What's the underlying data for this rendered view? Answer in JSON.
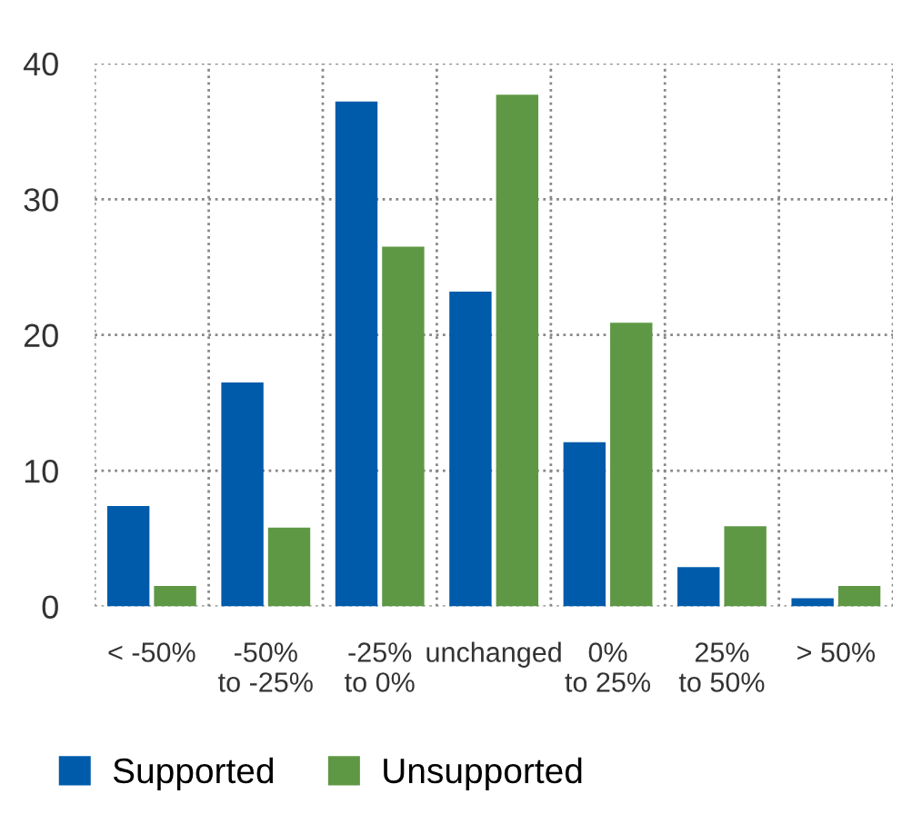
{
  "chart_data": {
    "type": "bar",
    "categories": [
      "< -50%",
      "-50%\nto -25%",
      "-25%\nto 0%",
      "unchanged",
      "0%\nto 25%",
      "25%\nto 50%",
      "> 50%"
    ],
    "series": [
      {
        "name": "Supported",
        "color": "#005bab",
        "values": [
          7.4,
          16.5,
          37.2,
          23.2,
          12.1,
          2.9,
          0.6
        ]
      },
      {
        "name": "Unsupported",
        "color": "#5e9844",
        "values": [
          1.5,
          5.8,
          26.5,
          37.7,
          20.9,
          5.9,
          1.5
        ]
      }
    ],
    "ylim": [
      0,
      40
    ],
    "yticks": [
      0,
      10,
      20,
      30,
      40
    ],
    "grid": true,
    "legend": "bottom left"
  }
}
